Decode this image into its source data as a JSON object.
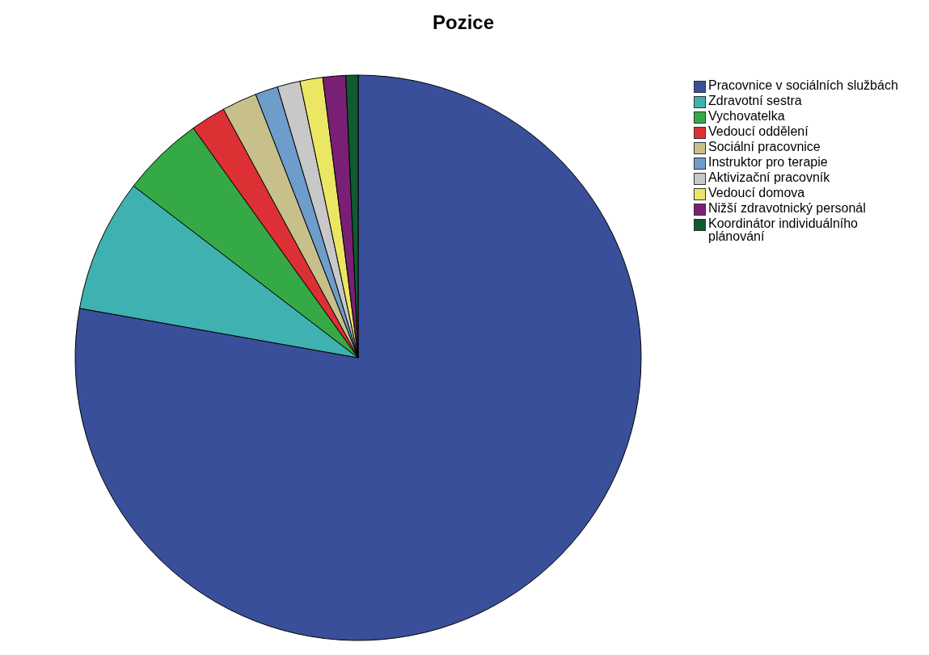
{
  "chart_data": {
    "type": "pie",
    "title": "Pozice",
    "categories": [
      "Pracovnice v sociálních službách",
      "Zdravotní sestra",
      "Vychovatelka",
      "Vedoucí oddělení",
      "Sociální pracovnice",
      "Instruktor pro terapie",
      "Aktivizační pracovník",
      "Vedoucí domova",
      "Nižší zdravotnický personál",
      "Koordinátor individuálního plánování"
    ],
    "values": [
      77.8,
      7.6,
      4.7,
      2.0,
      2.0,
      1.3,
      1.3,
      1.3,
      1.3,
      0.7
    ],
    "colors": [
      "#3a4f9a",
      "#3fb1b1",
      "#35a945",
      "#dd3035",
      "#c8c08a",
      "#6e9ccb",
      "#c8c8c8",
      "#ebe764",
      "#7a2074",
      "#0f5a30"
    ],
    "legend": "top right"
  }
}
